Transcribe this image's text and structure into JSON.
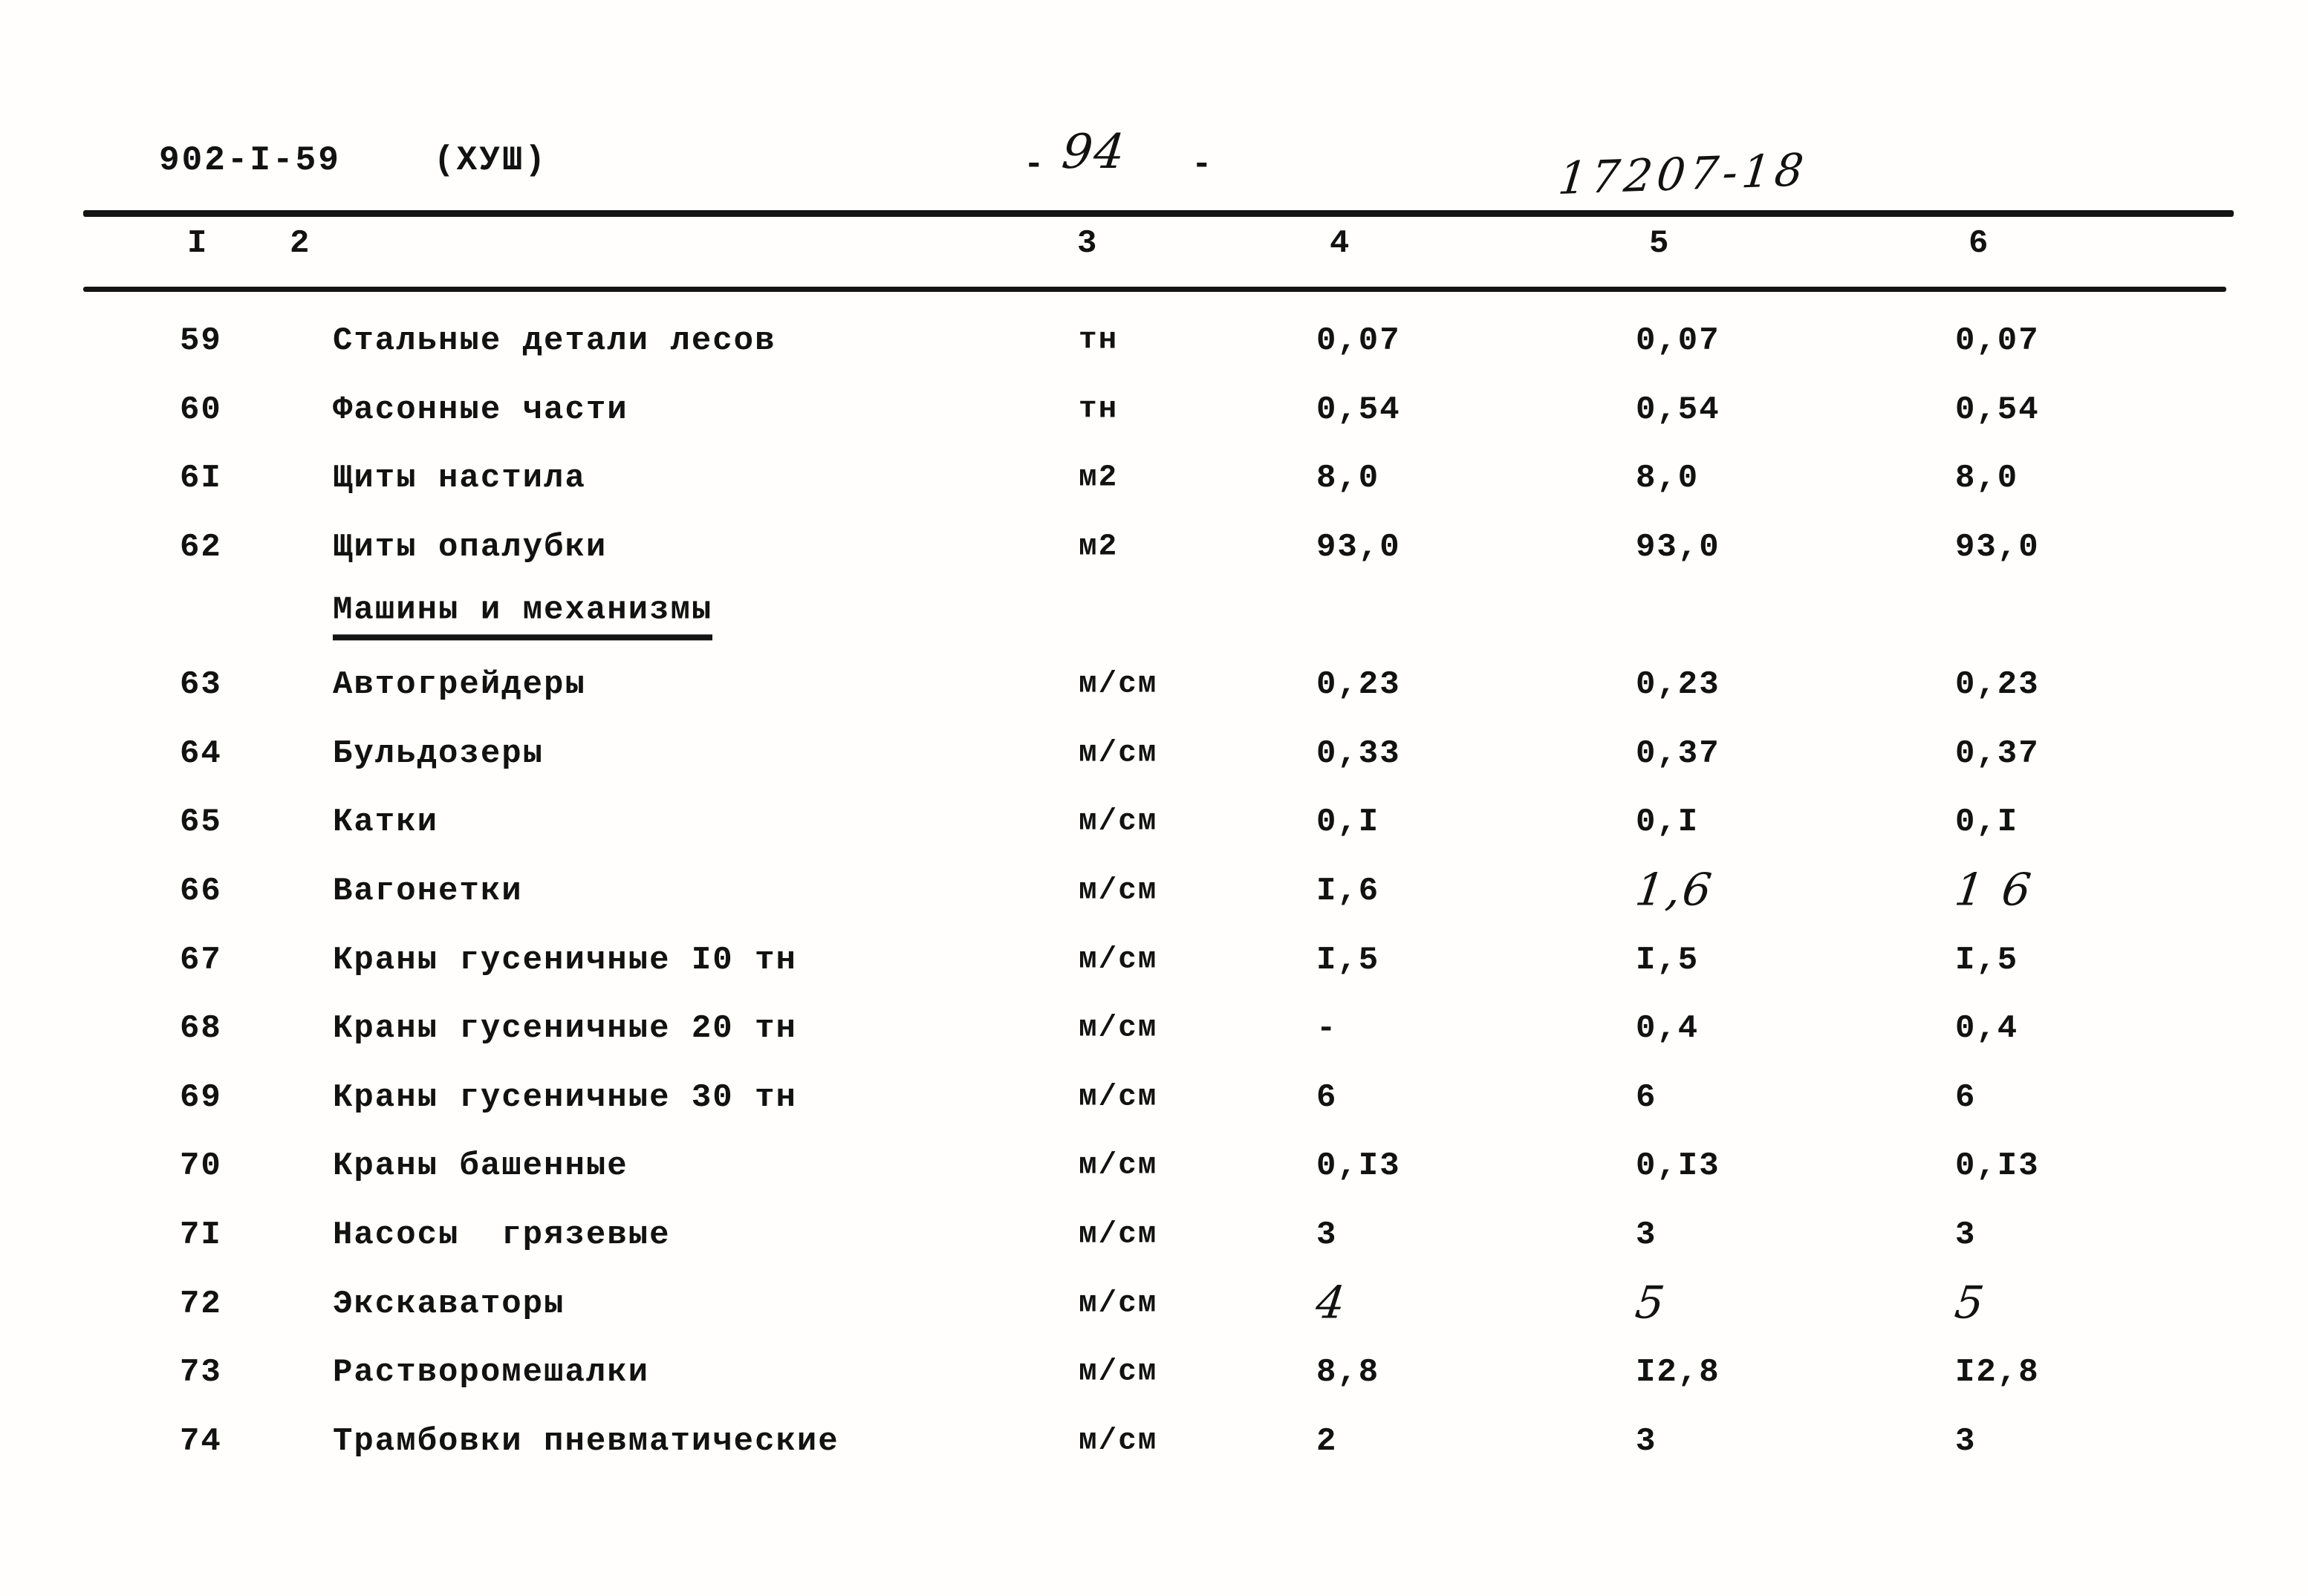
{
  "header": {
    "doc_number": "902-I-59",
    "doc_series": "(ХУШ)",
    "page_dash_left": "-",
    "page_number": "94",
    "page_dash_right": "-",
    "inventory_number": "17207-18"
  },
  "table": {
    "column_numbers": [
      "I",
      "2",
      "3",
      "4",
      "5",
      "6"
    ],
    "rows": [
      {
        "num": "59",
        "name": "Стальные детали лесов",
        "unit": "тн",
        "values": [
          "0,07",
          "0,07",
          "0,07"
        ],
        "hand": [
          false,
          false,
          false
        ]
      },
      {
        "num": "60",
        "name": "Фасонные части",
        "unit": "тн",
        "values": [
          "0,54",
          "0,54",
          "0,54"
        ],
        "hand": [
          false,
          false,
          false
        ]
      },
      {
        "num": "6I",
        "name": "Щиты настила",
        "unit": "м2",
        "values": [
          "8,0",
          "8,0",
          "8,0"
        ],
        "hand": [
          false,
          false,
          false
        ]
      },
      {
        "num": "62",
        "name": "Щиты опалубки",
        "unit": "м2",
        "values": [
          "93,0",
          "93,0",
          "93,0"
        ],
        "hand": [
          false,
          false,
          false
        ]
      },
      {
        "section": "Машины и механизмы"
      },
      {
        "num": "63",
        "name": "Автогрейдеры",
        "unit": "м/см",
        "values": [
          "0,23",
          "0,23",
          "0,23"
        ],
        "hand": [
          false,
          false,
          false
        ]
      },
      {
        "num": "64",
        "name": "Бульдозеры",
        "unit": "м/см",
        "values": [
          "0,33",
          "0,37",
          "0,37"
        ],
        "hand": [
          false,
          false,
          false
        ]
      },
      {
        "num": "65",
        "name": "Катки",
        "unit": "м/см",
        "values": [
          "0,I",
          "0,I",
          "0,I"
        ],
        "hand": [
          false,
          false,
          false
        ]
      },
      {
        "num": "66",
        "name": "Вагонетки",
        "unit": "м/см",
        "values": [
          "I,6",
          "1,6",
          "1 6"
        ],
        "hand": [
          false,
          true,
          true
        ]
      },
      {
        "num": "67",
        "name": "Краны гусеничные I0 тн",
        "unit": "м/см",
        "values": [
          "I,5",
          "I,5",
          "I,5"
        ],
        "hand": [
          false,
          false,
          false
        ]
      },
      {
        "num": "68",
        "name": "Краны гусеничные 20 тн",
        "unit": "м/см",
        "values": [
          "-",
          "0,4",
          "0,4"
        ],
        "hand": [
          false,
          false,
          false
        ]
      },
      {
        "num": "69",
        "name": "Краны гусеничные 30 тн",
        "unit": "м/см",
        "values": [
          "6",
          "6",
          "6"
        ],
        "hand": [
          false,
          false,
          false
        ]
      },
      {
        "num": "70",
        "name": "Краны башенные",
        "unit": "м/см",
        "values": [
          "0,I3",
          "0,I3",
          "0,I3"
        ],
        "hand": [
          false,
          false,
          false
        ]
      },
      {
        "num": "7I",
        "name": "Насосы  грязевые",
        "unit": "м/см",
        "values": [
          "3",
          "3",
          "3"
        ],
        "hand": [
          false,
          false,
          false
        ]
      },
      {
        "num": "72",
        "name": "Экскаваторы",
        "unit": "м/см",
        "values": [
          "4",
          "5",
          "5"
        ],
        "hand": [
          true,
          true,
          true
        ]
      },
      {
        "num": "73",
        "name": "Растворомешалки",
        "unit": "м/см",
        "values": [
          "8,8",
          "I2,8",
          "I2,8"
        ],
        "hand": [
          false,
          false,
          false
        ]
      },
      {
        "num": "74",
        "name": "Трамбовки пневматические",
        "unit": "м/см",
        "values": [
          "2",
          "3",
          "3"
        ],
        "hand": [
          false,
          false,
          false
        ]
      }
    ]
  }
}
